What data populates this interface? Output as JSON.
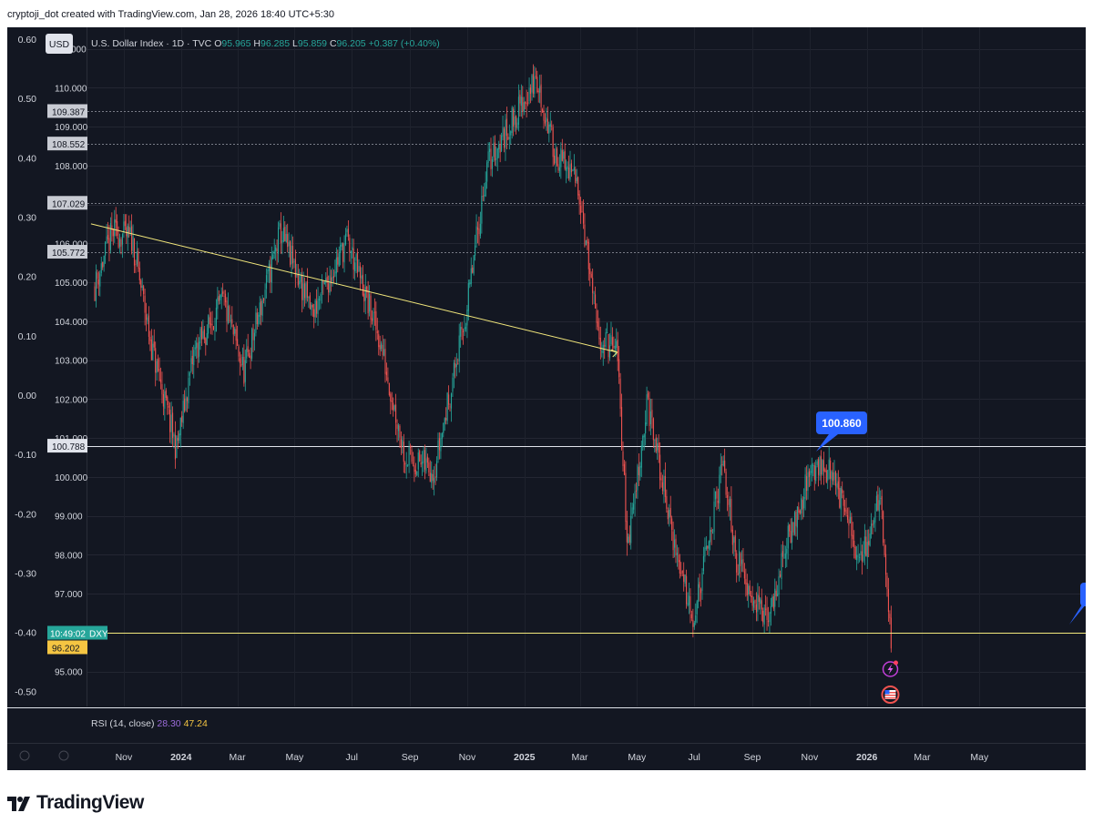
{
  "header": {
    "attribution": "cryptoji_dot created with TradingView.com, Jan 28, 2026 18:40 UTC+5:30"
  },
  "legend": {
    "currency": "USD",
    "symbol": "U.S. Dollar Index · 1D · TVC",
    "o_label": "O",
    "o_value": "95.965",
    "h_label": "H",
    "h_value": "96.285",
    "l_label": "L",
    "l_value": "95.859",
    "c_label": "C",
    "c_value": "96.205",
    "change": "+0.387 (+0.40%)"
  },
  "rsi": {
    "label": "RSI (14, close)",
    "value1": "28.30",
    "value2": "47.24"
  },
  "chart_data": {
    "type": "candlestick",
    "left_axis": {
      "ticks": [
        "0.60",
        "0.50",
        "0.40",
        "0.30",
        "0.20",
        "0.10",
        "0.00",
        "-0.10",
        "-0.20",
        "-0.30",
        "-0.40",
        "-0.50"
      ],
      "range": [
        -0.525,
        0.62
      ]
    },
    "price_axis": {
      "range": [
        94.1,
        111.55
      ],
      "ticks": [
        "111.000",
        "110.000",
        "109.000",
        "108.000",
        "107.000",
        "106.000",
        "105.000",
        "104.000",
        "103.000",
        "102.000",
        "101.000",
        "100.000",
        "99.000",
        "98.000",
        "97.000",
        "96.000",
        "95.000"
      ]
    },
    "time_axis": [
      "Nov",
      "2024",
      "Mar",
      "May",
      "Jul",
      "Sep",
      "Nov",
      "2025",
      "Mar",
      "May",
      "Jul",
      "Sep",
      "Nov",
      "2026",
      "Mar",
      "May"
    ],
    "bold_time_labels": [
      "2024",
      "2025",
      "2026"
    ],
    "horizontal_levels": [
      {
        "label": "109.387",
        "value": 109.387,
        "style": "dotted"
      },
      {
        "label": "108.552",
        "value": 108.552,
        "style": "dotted"
      },
      {
        "label": "107.029",
        "value": 107.029,
        "style": "dotted"
      },
      {
        "label": "105.772",
        "value": 105.772,
        "style": "dotted"
      },
      {
        "label": "100.788",
        "value": 100.788,
        "style": "solid"
      }
    ],
    "current": {
      "price": "96.202",
      "time": "10:49:02",
      "symbol": "DXY",
      "line_value": 96.0
    },
    "callout": {
      "label": "100.860",
      "value": 100.86
    },
    "trendline": {
      "from": {
        "date": "2023-09-27",
        "price": 106.5
      },
      "to": {
        "date": "2025-04-10",
        "price": 103.2
      }
    },
    "price_path": [
      [
        "2023-10-01",
        104.9
      ],
      [
        "2023-10-20",
        106.3
      ],
      [
        "2023-11-10",
        106.1
      ],
      [
        "2023-12-01",
        103.3
      ],
      [
        "2023-12-27",
        100.7
      ],
      [
        "2024-01-15",
        103.2
      ],
      [
        "2024-02-15",
        104.5
      ],
      [
        "2024-03-08",
        102.7
      ],
      [
        "2024-04-16",
        106.3
      ],
      [
        "2024-05-20",
        104.2
      ],
      [
        "2024-06-26",
        106.1
      ],
      [
        "2024-07-31",
        103.5
      ],
      [
        "2024-08-27",
        100.5
      ],
      [
        "2024-09-27",
        100.2
      ],
      [
        "2024-10-31",
        104.2
      ],
      [
        "2024-11-22",
        108.0
      ],
      [
        "2025-01-13",
        110.2
      ],
      [
        "2025-02-03",
        108.3
      ],
      [
        "2025-02-28",
        107.5
      ],
      [
        "2025-03-20",
        103.6
      ],
      [
        "2025-04-10",
        103.2
      ],
      [
        "2025-04-21",
        98.2
      ],
      [
        "2025-05-12",
        101.9
      ],
      [
        "2025-06-12",
        98.0
      ],
      [
        "2025-07-01",
        96.4
      ],
      [
        "2025-08-01",
        100.3
      ],
      [
        "2025-08-15",
        97.9
      ],
      [
        "2025-09-17",
        96.2
      ],
      [
        "2025-10-10",
        98.5
      ],
      [
        "2025-11-05",
        100.3
      ],
      [
        "2025-11-26",
        100.1
      ],
      [
        "2025-12-24",
        97.8
      ],
      [
        "2026-01-16",
        99.5
      ],
      [
        "2026-01-27",
        95.6
      ],
      [
        "2026-01-28",
        96.2
      ]
    ]
  },
  "icons": [
    "tradingview-logo-icon",
    "earnings-flash-icon",
    "us-flag-icon",
    "alert-dot-icon"
  ],
  "brand": {
    "name": "TradingView"
  },
  "colors": {
    "background": "#131722",
    "up": "#26a69a",
    "down": "#ef5350",
    "trendline": "#f3e87c",
    "callout": "#2962ff",
    "current_time_bg": "#26a69a",
    "current_price_bg": "#f5c542"
  }
}
